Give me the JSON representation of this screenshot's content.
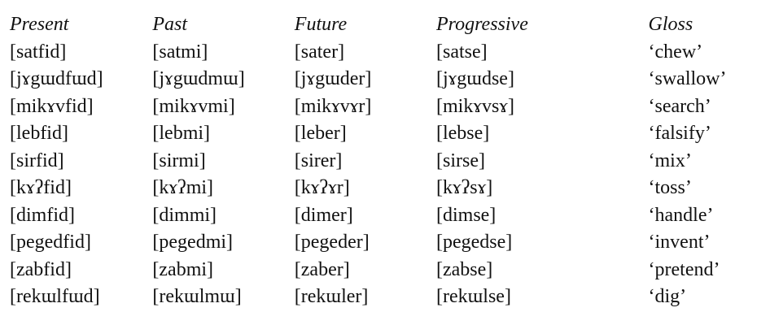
{
  "table": {
    "headers": [
      "Present",
      "Past",
      "Future",
      "Progressive",
      "Gloss"
    ],
    "rows": [
      [
        "[satfid]",
        "[satmi]",
        "[sater]",
        "[satse]",
        "‘chew’"
      ],
      [
        "[jɤgɯdfɯd]",
        "[jɤgɯdmɯ]",
        "[jɤgɯder]",
        "[jɤgɯdse]",
        "‘swallow’"
      ],
      [
        "[mikɤvfid]",
        "[mikɤvmi]",
        "[mikɤvɤr]",
        "[mikɤvsɤ]",
        "‘search’"
      ],
      [
        "[lebfid]",
        "[lebmi]",
        "[leber]",
        "[lebse]",
        "‘falsify’"
      ],
      [
        "[sirfid]",
        "[sirmi]",
        "[sirer]",
        "[sirse]",
        "‘mix’"
      ],
      [
        "[kɤʔfid]",
        "[kɤʔmi]",
        "[kɤʔɤr]",
        "[kɤʔsɤ]",
        "‘toss’"
      ],
      [
        "[dimfid]",
        "[dimmi]",
        "[dimer]",
        "[dimse]",
        "‘handle’"
      ],
      [
        "[pegedfid]",
        "[pegedmi]",
        "[pegeder]",
        "[pegedse]",
        "‘invent’"
      ],
      [
        "[zabfid]",
        "[zabmi]",
        "[zaber]",
        "[zabse]",
        "‘pretend’"
      ],
      [
        "[rekɯlfɯd]",
        "[rekɯlmɯ]",
        "[rekɯler]",
        "[rekɯlse]",
        "‘dig’"
      ]
    ]
  }
}
